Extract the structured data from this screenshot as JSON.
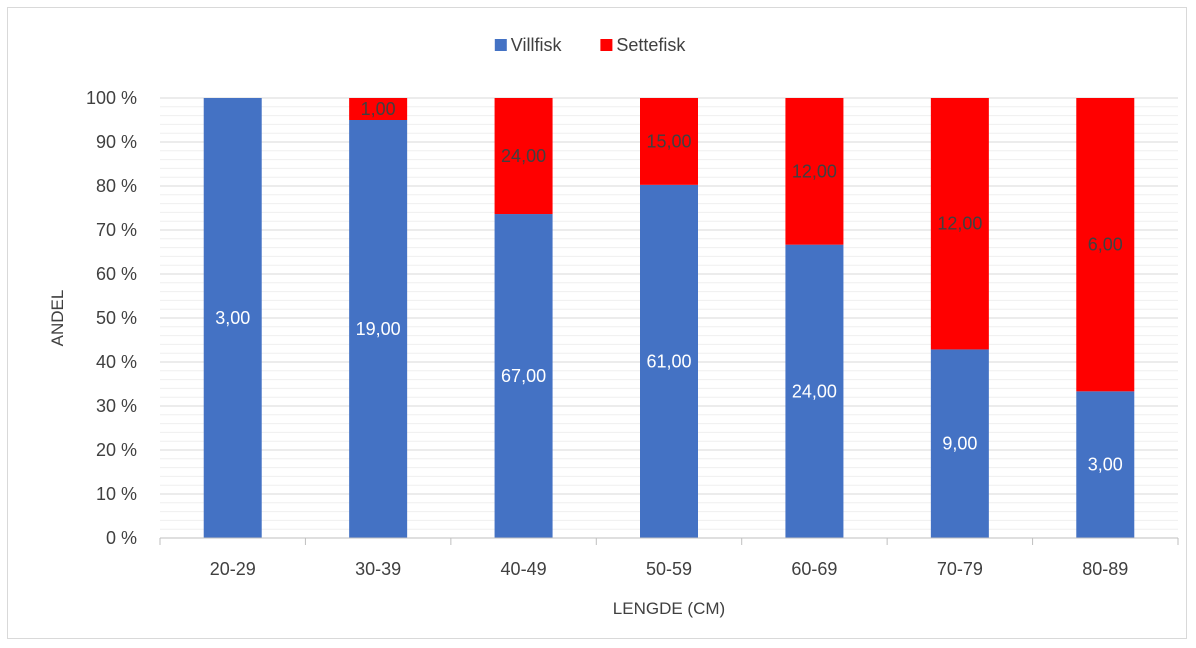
{
  "chart_data": {
    "type": "bar",
    "stacked": "percent",
    "categories": [
      "20-29",
      "30-39",
      "40-49",
      "50-59",
      "60-69",
      "70-79",
      "80-89"
    ],
    "series": [
      {
        "name": "Villfisk",
        "color": "#4472c4",
        "label_color": "#ffffff",
        "values": [
          3,
          19,
          67,
          61,
          24,
          9,
          3
        ],
        "labels": [
          "3,00",
          "19,00",
          "67,00",
          "61,00",
          "24,00",
          "9,00",
          "3,00"
        ]
      },
      {
        "name": "Settefisk",
        "color": "#ff0000",
        "label_color": "#404040",
        "values": [
          0,
          1,
          24,
          15,
          12,
          12,
          6
        ],
        "labels": [
          "",
          "1,00",
          "24,00",
          "15,00",
          "12,00",
          "12,00",
          "6,00"
        ]
      }
    ],
    "y_ticks": [
      "0 %",
      "10 %",
      "20 %",
      "30 %",
      "40 %",
      "50 %",
      "60 %",
      "70 %",
      "80 %",
      "90 %",
      "100 %"
    ],
    "ylim": [
      0,
      100
    ],
    "xlabel": "LENGDE (CM)",
    "ylabel": "ANDEL",
    "legend_position": "top",
    "grid": true
  }
}
